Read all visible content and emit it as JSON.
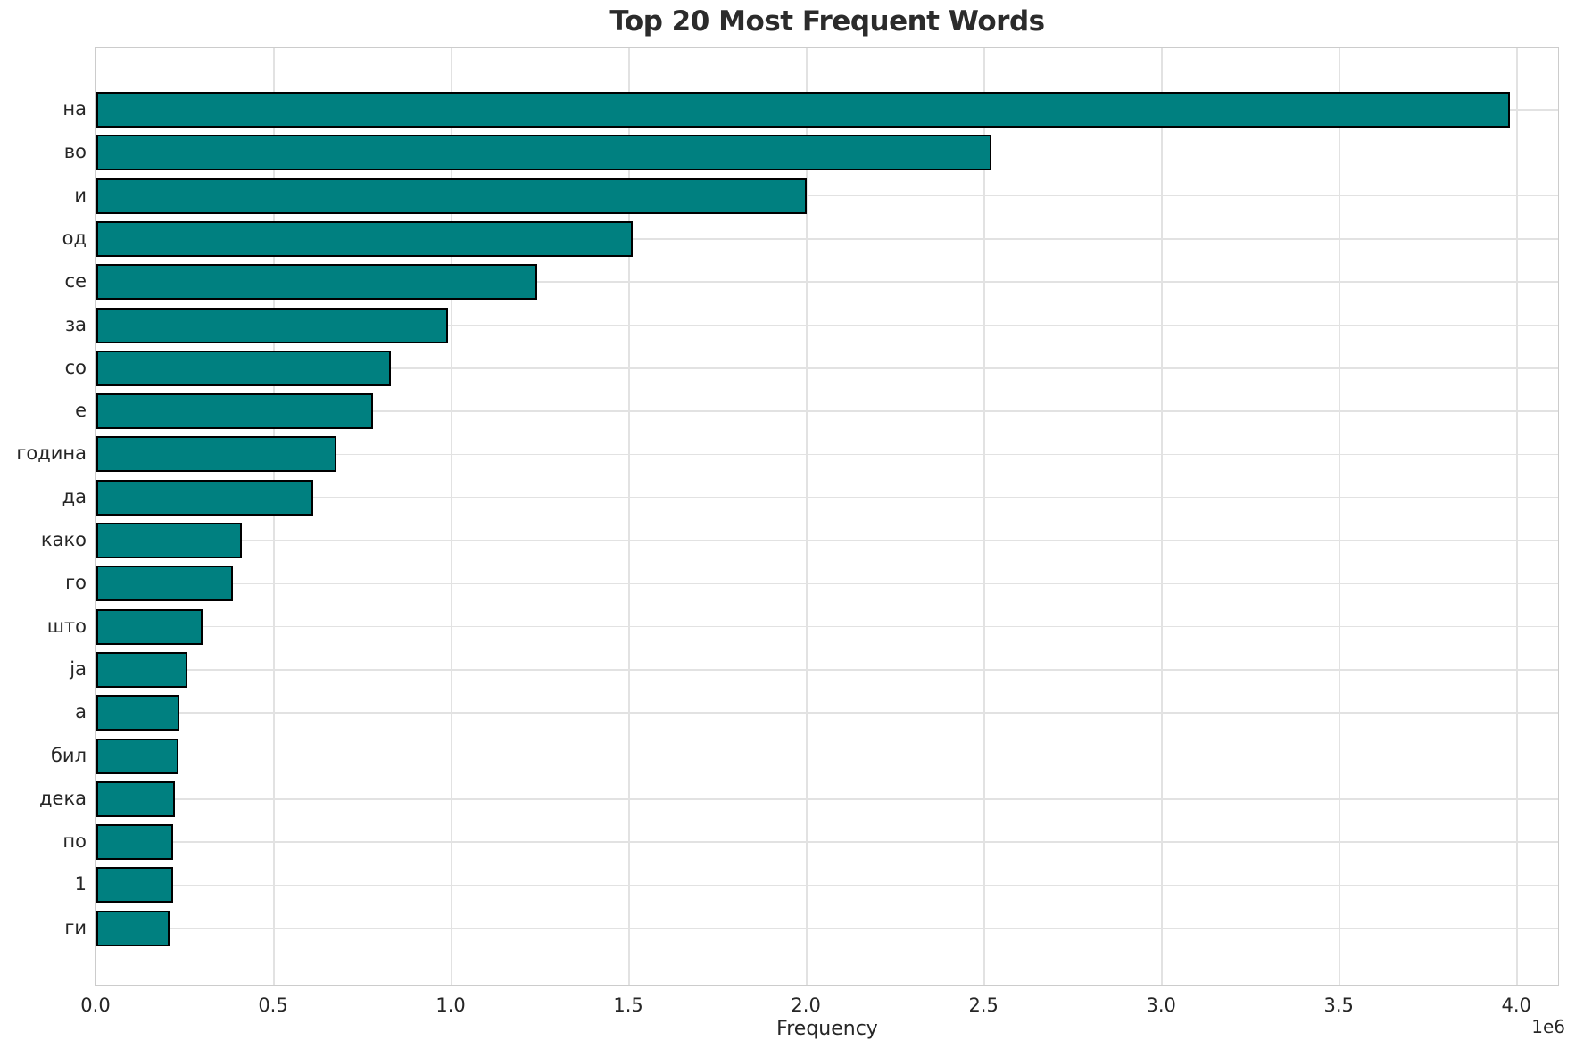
{
  "title": "Top 20 Most Frequent Words",
  "chart_data": {
    "type": "bar",
    "orientation": "horizontal",
    "title": "Top 20 Most Frequent Words",
    "xlabel": "Frequency",
    "ylabel": "",
    "offset_text": "1e6",
    "categories": [
      "на",
      "во",
      "и",
      "од",
      "се",
      "за",
      "со",
      "е",
      "година",
      "да",
      "како",
      "го",
      "што",
      "ја",
      "а",
      "бил",
      "дека",
      "по",
      "1",
      "ги"
    ],
    "values": [
      3980000,
      2520000,
      2000000,
      1510000,
      1240000,
      990000,
      830000,
      780000,
      675000,
      610000,
      410000,
      385000,
      300000,
      257000,
      233000,
      231000,
      220000,
      217000,
      216000,
      205000
    ],
    "xlim": [
      0,
      4120000
    ],
    "x_ticks": [
      0,
      500000,
      1000000,
      1500000,
      2000000,
      2500000,
      3000000,
      3500000,
      4000000
    ],
    "x_tick_labels": [
      "0.0",
      "0.5",
      "1.0",
      "1.5",
      "2.0",
      "2.5",
      "3.0",
      "3.5",
      "4.0"
    ],
    "grid": true,
    "legend": false,
    "bar_color": "#008080",
    "bar_edge_color": "#000000",
    "grid_color": "#e2e2e2"
  }
}
